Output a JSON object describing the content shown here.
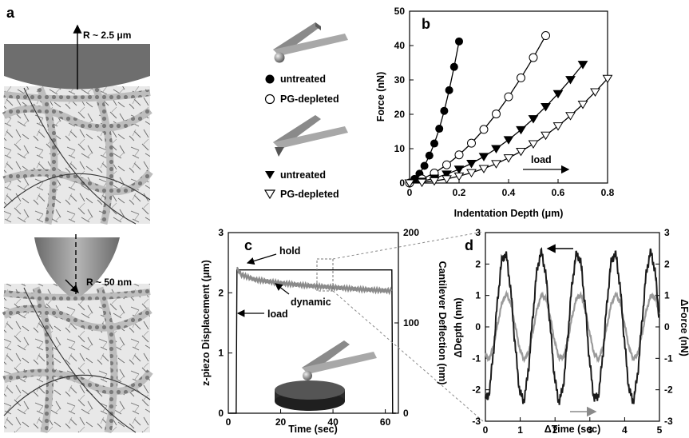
{
  "panels": {
    "a": {
      "label": "a",
      "top_radius_label": "R ~ 2.5 μm",
      "bottom_radius_label": "R ~ 50 nm"
    },
    "legend": {
      "sphere_untreated": "untreated",
      "sphere_pg": "PG-depleted",
      "pyr_untreated": "untreated",
      "pyr_pg": "PG-depleted"
    },
    "b": {
      "label": "b",
      "load_label": "load"
    },
    "c": {
      "label": "c",
      "hold_label": "hold",
      "dynamic_label": "dynamic",
      "load_label": "load"
    },
    "d": {
      "label": "d"
    }
  },
  "chart_data": [
    {
      "id": "b",
      "type": "scatter",
      "xlabel": "Indentation Depth (μm)",
      "ylabel": "Force (nN)",
      "xlim": [
        0,
        0.8
      ],
      "ylim": [
        0,
        50
      ],
      "xticks": [
        "0",
        "0.2",
        "0.4",
        "0.6",
        "0.8"
      ],
      "yticks": [
        "0",
        "10",
        "20",
        "30",
        "40",
        "50"
      ],
      "series": [
        {
          "name": "untreated",
          "marker": "filled-circle",
          "x": [
            0,
            0.02,
            0.04,
            0.06,
            0.08,
            0.1,
            0.12,
            0.14,
            0.16,
            0.18,
            0.2
          ],
          "y": [
            0,
            1.2,
            2.7,
            5.0,
            8.0,
            11.5,
            15.8,
            21.0,
            27.0,
            33.8,
            41.2
          ]
        },
        {
          "name": "PG-depleted",
          "marker": "open-circle",
          "x": [
            0,
            0.05,
            0.1,
            0.15,
            0.2,
            0.25,
            0.3,
            0.35,
            0.4,
            0.45,
            0.5,
            0.55
          ],
          "y": [
            0,
            1.2,
            2.9,
            5.3,
            8.2,
            11.6,
            15.6,
            20.1,
            25.1,
            30.6,
            36.5,
            42.9
          ]
        },
        {
          "name": "untreated",
          "marker": "filled-triangle-down",
          "x": [
            0,
            0.05,
            0.1,
            0.15,
            0.2,
            0.25,
            0.3,
            0.35,
            0.4,
            0.45,
            0.5,
            0.55,
            0.6,
            0.65,
            0.7
          ],
          "y": [
            0,
            0.5,
            1.4,
            2.6,
            4.0,
            5.7,
            7.7,
            10.0,
            12.6,
            15.5,
            18.7,
            22.2,
            26.0,
            30.1,
            34.5
          ]
        },
        {
          "name": "PG-depleted",
          "marker": "open-triangle-down",
          "x": [
            0,
            0.05,
            0.1,
            0.15,
            0.2,
            0.25,
            0.3,
            0.35,
            0.4,
            0.45,
            0.5,
            0.55,
            0.6,
            0.65,
            0.7,
            0.75,
            0.8
          ],
          "y": [
            0,
            0.2,
            0.6,
            1.2,
            2.0,
            3.0,
            4.2,
            5.6,
            7.3,
            9.2,
            11.4,
            13.9,
            16.6,
            19.6,
            22.9,
            26.5,
            30.4
          ]
        }
      ]
    },
    {
      "id": "c",
      "type": "line",
      "xlabel": "Time (sec)",
      "ylabel_left": "z-piezo Displacement (μm)",
      "ylabel_right": "Cantilever Deflection (nm)",
      "xlim": [
        0,
        65
      ],
      "ylim_left": [
        0,
        3
      ],
      "ylim_right": [
        0,
        200
      ],
      "xticks": [
        "0",
        "20",
        "40",
        "60"
      ],
      "yticks_left": [
        "0",
        "1",
        "2",
        "3"
      ],
      "yticks_right": [
        "0",
        "100",
        "200"
      ],
      "series": [
        {
          "name": "hold",
          "axis": "left",
          "x": [
            0,
            3,
            3.3,
            62.5,
            62.8,
            64
          ],
          "y": [
            0,
            0,
            2.38,
            2.38,
            0,
            0
          ]
        },
        {
          "name": "dynamic",
          "axis": "left",
          "x": [
            3.3,
            5,
            10,
            20,
            30,
            40,
            50,
            62.5
          ],
          "y": [
            2.4,
            2.3,
            2.22,
            2.16,
            2.12,
            2.09,
            2.06,
            2.03
          ]
        }
      ]
    },
    {
      "id": "d",
      "type": "line",
      "xlabel": "ΔTime (sec)",
      "ylabel_left": "ΔDepth (nm)",
      "ylabel_right": "ΔForce (nN)",
      "xlim": [
        0,
        5
      ],
      "ylim_left": [
        -3,
        3
      ],
      "ylim_right": [
        -3,
        3
      ],
      "xticks": [
        "0",
        "1",
        "2",
        "3",
        "4",
        "5"
      ],
      "yticks_left": [
        "-3",
        "-2",
        "-1",
        "0",
        "1",
        "2",
        "3"
      ],
      "yticks_right": [
        "-3",
        "-2",
        "-1",
        "0",
        "1",
        "2",
        "3"
      ],
      "series": [
        {
          "name": "ΔDepth",
          "color": "#1a1a1a",
          "amplitude": 2.3,
          "period": 1.05,
          "phase_peak": 0.55
        },
        {
          "name": "ΔForce",
          "color": "#9a9a9a",
          "amplitude": 1.0,
          "period": 1.05,
          "phase_peak": 0.6
        }
      ]
    }
  ]
}
